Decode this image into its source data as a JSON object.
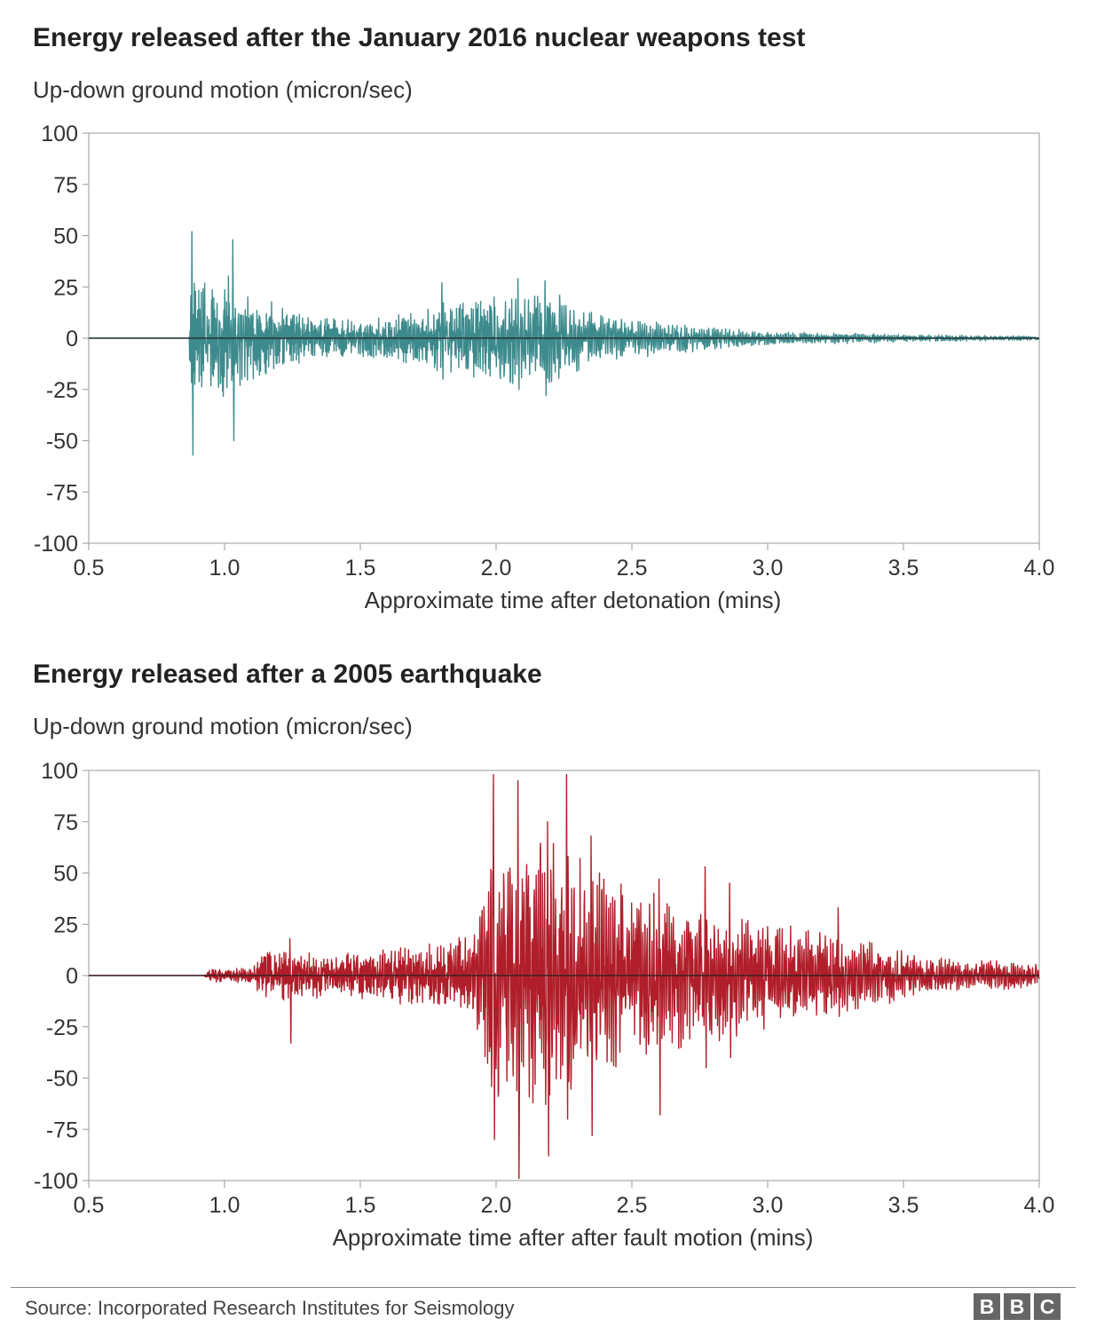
{
  "chart_data": [
    {
      "type": "line",
      "title": "Energy released after the January 2016 nuclear weapons test",
      "ylabel": "Up-down ground motion (micron/sec)",
      "xlabel": "Approximate time after detonation (mins)",
      "xlim": [
        0.5,
        4.0
      ],
      "ylim": [
        -100,
        100
      ],
      "xticks": [
        "0.5",
        "1.0",
        "1.5",
        "2.0",
        "2.5",
        "3.0",
        "3.5",
        "4.0"
      ],
      "yticks": [
        "100",
        "75",
        "50",
        "25",
        "0",
        "-25",
        "-50",
        "-75",
        "-100"
      ],
      "color": "#3d8a8c",
      "series": [
        {
          "name": "January 2016 nuclear test",
          "onset": 0.87,
          "peaks": [
            {
              "t": 0.88,
              "max": 52,
              "min": -57
            },
            {
              "t": 1.03,
              "max": 48,
              "min": -50
            },
            {
              "t": 1.8,
              "max": 27,
              "min": -20
            },
            {
              "t": 2.08,
              "max": 29,
              "min": -25
            },
            {
              "t": 2.18,
              "max": 28,
              "min": -28
            }
          ],
          "envelope": [
            [
              0.5,
              0
            ],
            [
              0.86,
              0
            ],
            [
              0.87,
              30
            ],
            [
              0.95,
              25
            ],
            [
              1.0,
              30
            ],
            [
              1.1,
              20
            ],
            [
              1.3,
              10
            ],
            [
              1.5,
              8
            ],
            [
              1.7,
              12
            ],
            [
              1.85,
              18
            ],
            [
              2.0,
              20
            ],
            [
              2.2,
              22
            ],
            [
              2.4,
              10
            ],
            [
              2.6,
              8
            ],
            [
              2.8,
              5
            ],
            [
              3.0,
              3
            ],
            [
              3.3,
              2.5
            ],
            [
              3.6,
              1.5
            ],
            [
              4.0,
              1
            ]
          ]
        }
      ]
    },
    {
      "type": "line",
      "title": "Energy released after a 2005 earthquake",
      "ylabel": "Up-down ground motion (micron/sec)",
      "xlabel": "Approximate time after after fault motion (mins)",
      "xlim": [
        0.5,
        4.0
      ],
      "ylim": [
        -100,
        100
      ],
      "xticks": [
        "0.5",
        "1.0",
        "1.5",
        "2.0",
        "2.5",
        "3.0",
        "3.5",
        "4.0"
      ],
      "yticks": [
        "100",
        "75",
        "50",
        "25",
        "0",
        "-25",
        "-50",
        "-75",
        "-100"
      ],
      "color": "#b01e2a",
      "series": [
        {
          "name": "2005 earthquake",
          "onset": 0.92,
          "peaks": [
            {
              "t": 1.24,
              "max": 18,
              "min": -33
            },
            {
              "t": 1.99,
              "max": 98,
              "min": -80
            },
            {
              "t": 2.08,
              "max": 95,
              "min": -99
            },
            {
              "t": 2.19,
              "max": 75,
              "min": -88
            },
            {
              "t": 2.26,
              "max": 98,
              "min": -70
            },
            {
              "t": 2.35,
              "max": 68,
              "min": -78
            },
            {
              "t": 2.6,
              "max": 47,
              "min": -68
            },
            {
              "t": 2.77,
              "max": 53,
              "min": -45
            },
            {
              "t": 2.86,
              "max": 45,
              "min": -40
            },
            {
              "t": 3.26,
              "max": 33,
              "min": -20
            }
          ],
          "envelope": [
            [
              0.5,
              0
            ],
            [
              0.92,
              0
            ],
            [
              0.95,
              3
            ],
            [
              1.1,
              4
            ],
            [
              1.15,
              12
            ],
            [
              1.3,
              10
            ],
            [
              1.6,
              12
            ],
            [
              1.9,
              18
            ],
            [
              1.97,
              55
            ],
            [
              2.1,
              65
            ],
            [
              2.3,
              55
            ],
            [
              2.5,
              40
            ],
            [
              2.8,
              30
            ],
            [
              3.0,
              24
            ],
            [
              3.3,
              18
            ],
            [
              3.6,
              8
            ],
            [
              4.0,
              6
            ]
          ]
        }
      ]
    }
  ],
  "footer": {
    "source": "Source: Incorporated Research Institutes for Seismology",
    "logo_letters": [
      "B",
      "B",
      "C"
    ]
  }
}
